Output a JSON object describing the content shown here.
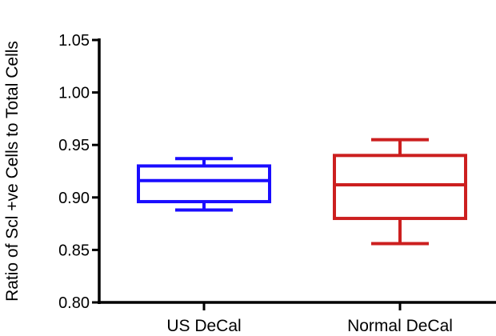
{
  "chart_data": {
    "type": "box",
    "title": "",
    "xlabel": "",
    "ylabel": "Ratio of Scl +ve Cells to Total Cells",
    "ylim": [
      0.8,
      1.05
    ],
    "yticks": [
      0.8,
      0.85,
      0.9,
      0.95,
      1.0,
      1.05
    ],
    "ytick_labels": [
      "0.80",
      "0.85",
      "0.90",
      "0.95",
      "1.00",
      "1.05"
    ],
    "categories": [
      "US DeCal",
      "Normal DeCal"
    ],
    "grid": false,
    "series": [
      {
        "color": "#1a0dff",
        "min": 0.888,
        "q1": 0.896,
        "median": 0.916,
        "q3": 0.93,
        "max": 0.937
      },
      {
        "color": "#cc1f1f",
        "min": 0.856,
        "q1": 0.88,
        "median": 0.912,
        "q3": 0.94,
        "max": 0.955
      }
    ]
  }
}
